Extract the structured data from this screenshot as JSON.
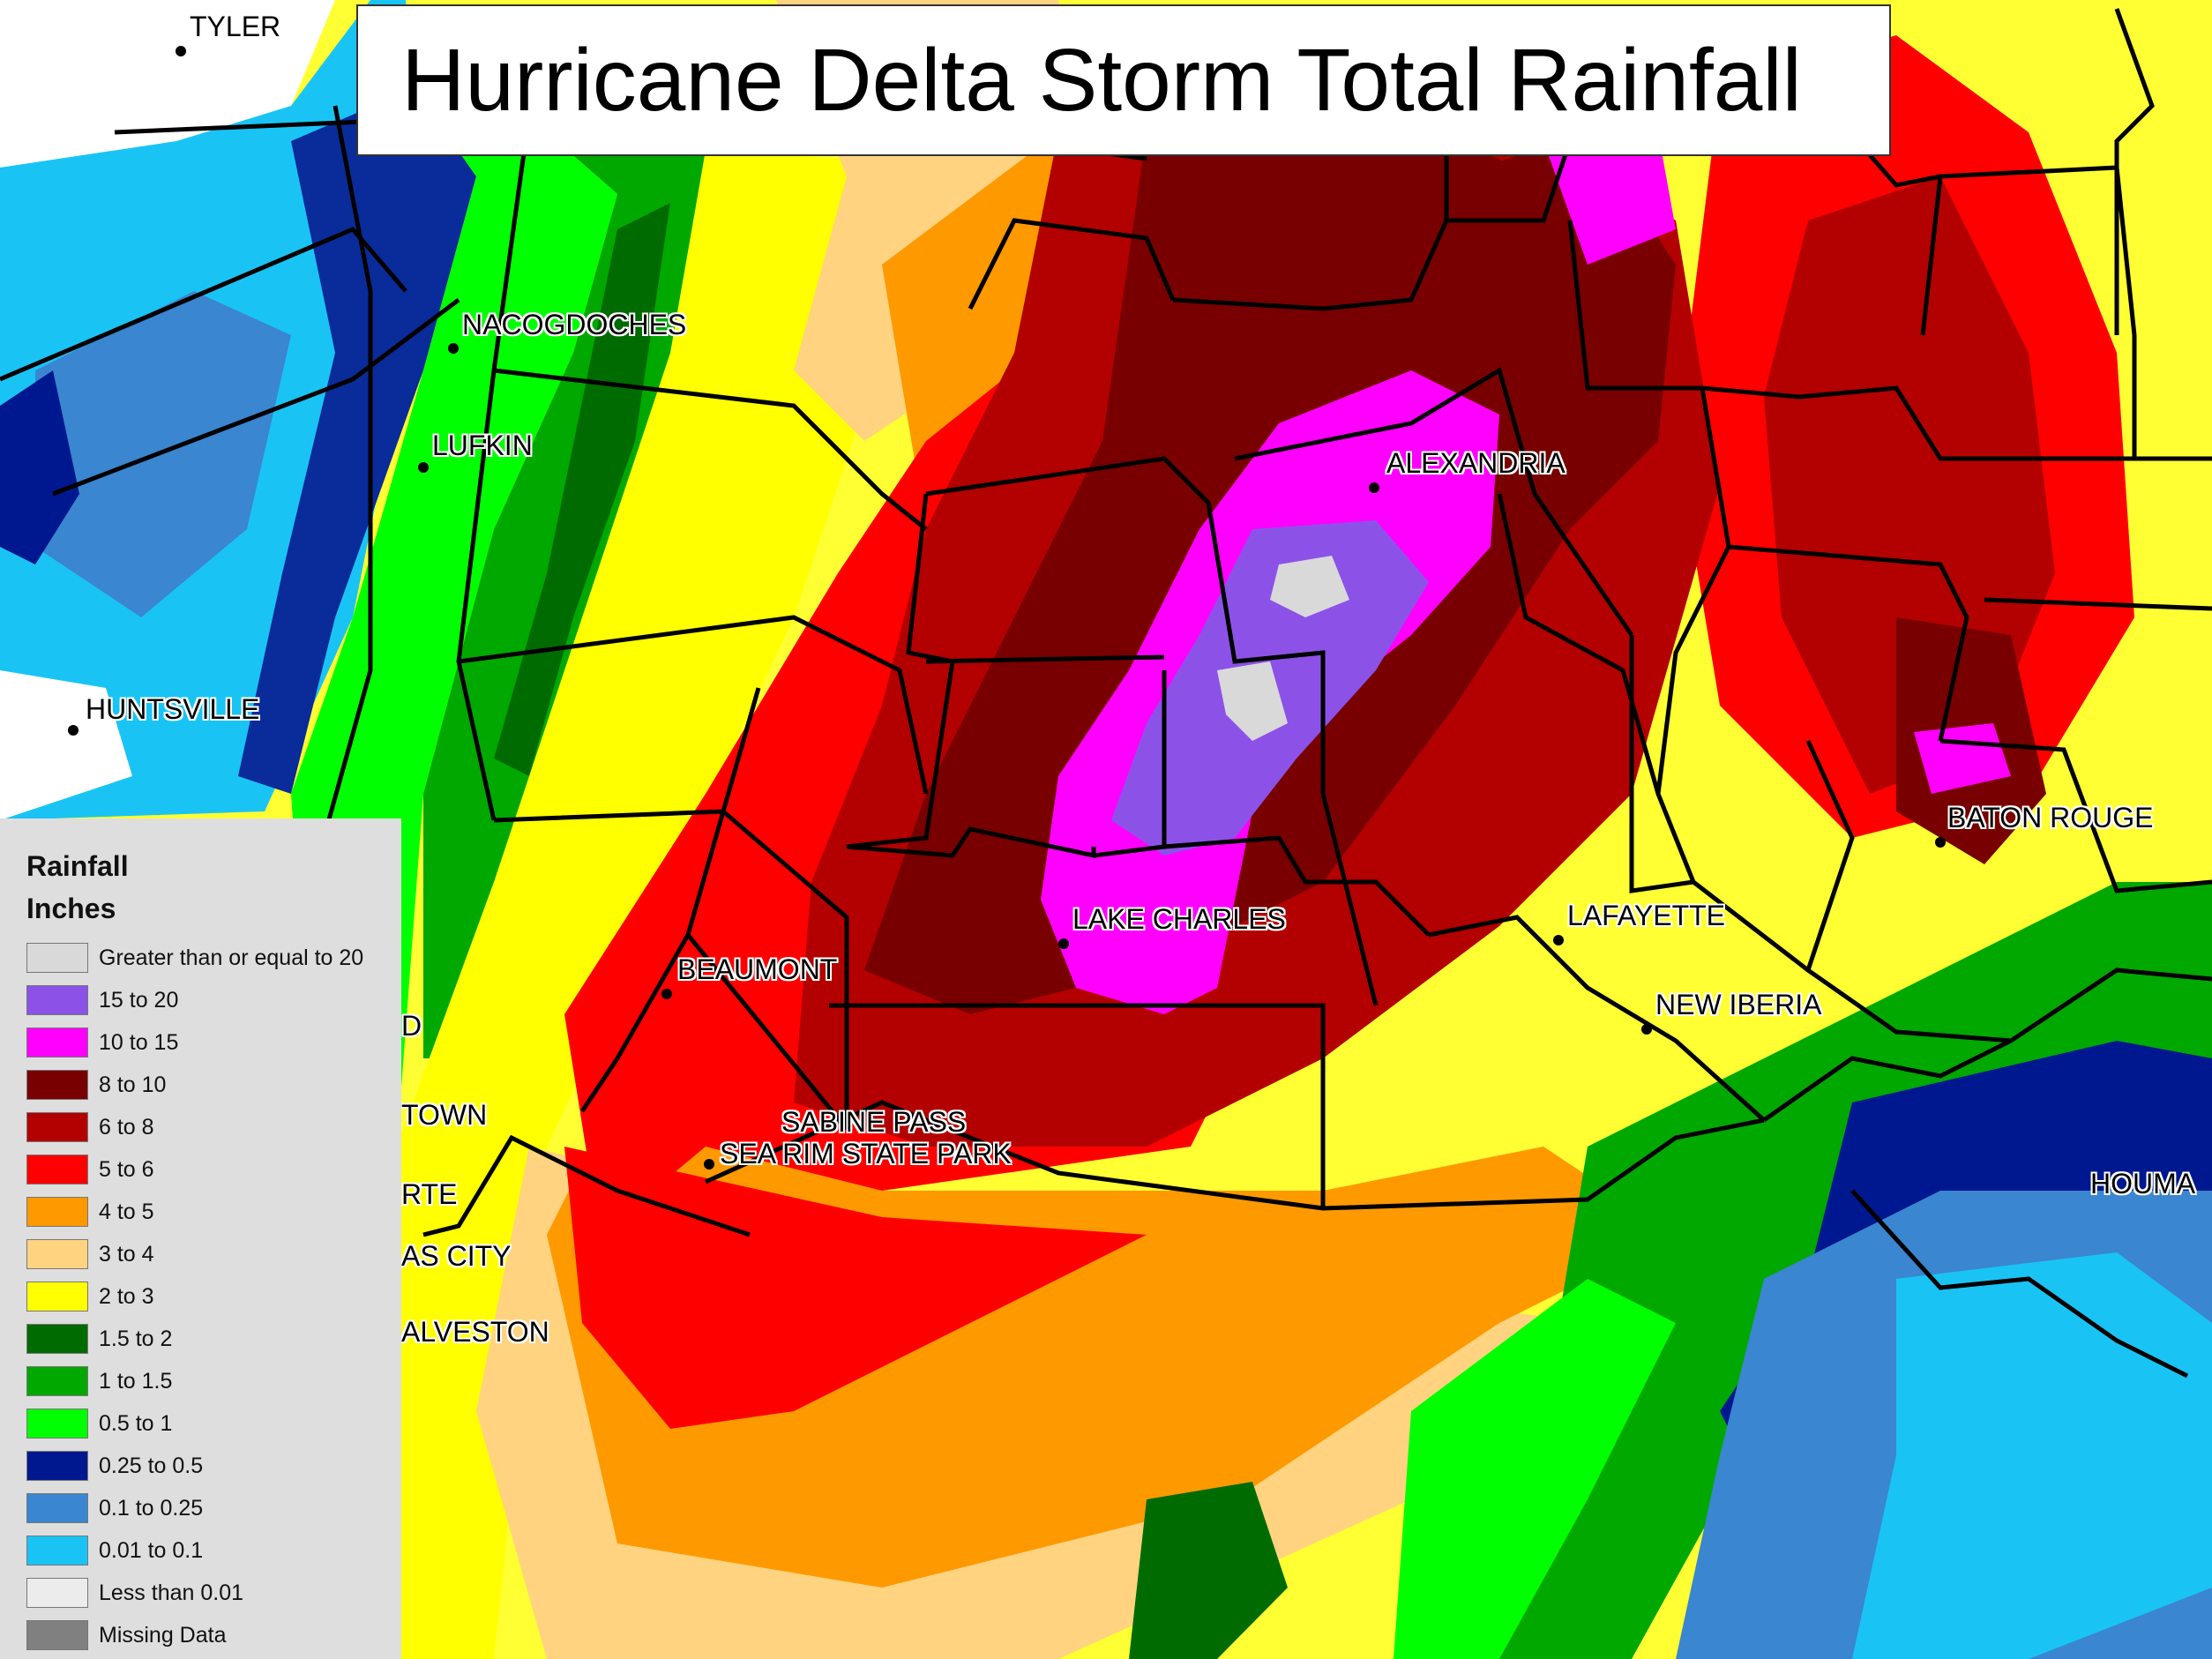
{
  "title": "Hurricane Delta Storm Total Rainfall",
  "cities": [
    {
      "id": "tyler",
      "name": "TYLER"
    },
    {
      "id": "nacogdoches",
      "name": "NACOGDOCHES"
    },
    {
      "id": "lufkin",
      "name": "LUFKIN"
    },
    {
      "id": "huntsville",
      "name": "HUNTSVILLE"
    },
    {
      "id": "alexandria",
      "name": "ALEXANDRIA"
    },
    {
      "id": "baton-rouge",
      "name": "BATON ROUGE"
    },
    {
      "id": "lafayette",
      "name": "LAFAYETTE"
    },
    {
      "id": "new-iberia",
      "name": "NEW IBERIA"
    },
    {
      "id": "lake-charles",
      "name": "LAKE CHARLES"
    },
    {
      "id": "beaumont",
      "name": "BEAUMONT"
    },
    {
      "id": "sabine-pass",
      "name": "SABINE PASS"
    },
    {
      "id": "sea-rim",
      "name": "SEA RIM STATE PARK"
    },
    {
      "id": "houma",
      "name": "HOUMA"
    },
    {
      "id": "galveston",
      "name": "ALVESTON"
    },
    {
      "id": "texas-city",
      "name": "AS CITY"
    },
    {
      "id": "baytown",
      "name": "TOWN"
    },
    {
      "id": "la-porte",
      "name": "RTE"
    },
    {
      "id": "partial-d",
      "name": "D"
    }
  ],
  "legend": {
    "title": "Rainfall",
    "subtitle": "Inches",
    "items": [
      {
        "label": "Greater than or equal to 20",
        "color": "#d9d9d9"
      },
      {
        "label": "15 to 20",
        "color": "#8c52e8"
      },
      {
        "label": "10 to 15",
        "color": "#ff00ff"
      },
      {
        "label": "8 to 10",
        "color": "#780000"
      },
      {
        "label": "6 to 8",
        "color": "#b30000"
      },
      {
        "label": "5 to 6",
        "color": "#ff0000"
      },
      {
        "label": "4 to 5",
        "color": "#ff9900"
      },
      {
        "label": "3 to 4",
        "color": "#ffd37f"
      },
      {
        "label": "2 to 3",
        "color": "#ffff00"
      },
      {
        "label": "1.5 to 2",
        "color": "#006b00"
      },
      {
        "label": "1 to 1.5",
        "color": "#00a800"
      },
      {
        "label": "0.5 to 1",
        "color": "#00ff00"
      },
      {
        "label": "0.25 to 0.5",
        "color": "#00188f"
      },
      {
        "label": "0.1 to 0.25",
        "color": "#3a86d0"
      },
      {
        "label": "0.01 to 0.1",
        "color": "#19c4f5"
      },
      {
        "label": "Less than 0.01",
        "color": "#ececec"
      },
      {
        "label": "Missing Data",
        "color": "#808080"
      }
    ]
  }
}
